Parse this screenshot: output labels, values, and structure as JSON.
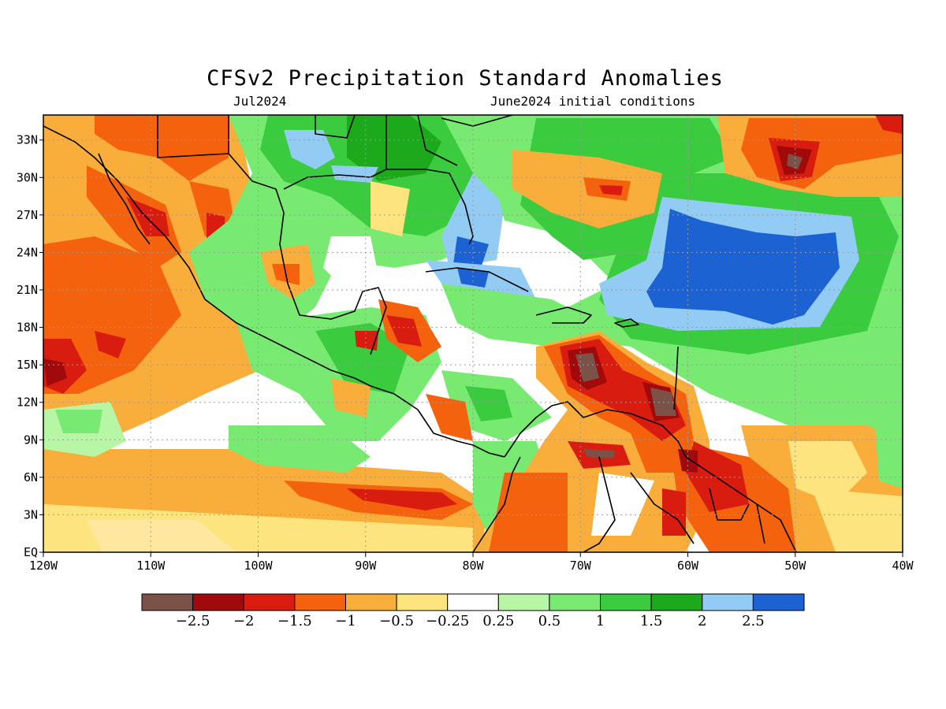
{
  "title": "CFSv2 Precipitation Standard Anomalies",
  "subtitle_left": "Jul2024",
  "subtitle_right": "June2024 initial conditions",
  "lat_labels": [
    "33N",
    "30N",
    "27N",
    "24N",
    "21N",
    "18N",
    "15N",
    "12N",
    "9N",
    "6N",
    "3N",
    "EQ"
  ],
  "lat_values": [
    33,
    30,
    27,
    24,
    21,
    18,
    15,
    12,
    9,
    6,
    3,
    0
  ],
  "lon_labels": [
    "120W",
    "110W",
    "100W",
    "90W",
    "80W",
    "70W",
    "60W",
    "50W",
    "40W"
  ],
  "lon_values": [
    -120,
    -110,
    -100,
    -90,
    -80,
    -70,
    -60,
    -50,
    -40
  ],
  "colorbar": {
    "colors": [
      "#7b5248",
      "#a10a0a",
      "#d81c10",
      "#f5620e",
      "#f9ae3c",
      "#fde47e",
      "#ffffff",
      "#b6f6a5",
      "#78ea72",
      "#3bcb3e",
      "#1caa1c",
      "#92ccf5",
      "#1c62d2"
    ],
    "labels": [
      "−2.5",
      "−2",
      "−1.5",
      "−1",
      "−0.5",
      "−0.25",
      "0.25",
      "0.5",
      "1",
      "1.5",
      "2",
      "2.5"
    ]
  }
}
